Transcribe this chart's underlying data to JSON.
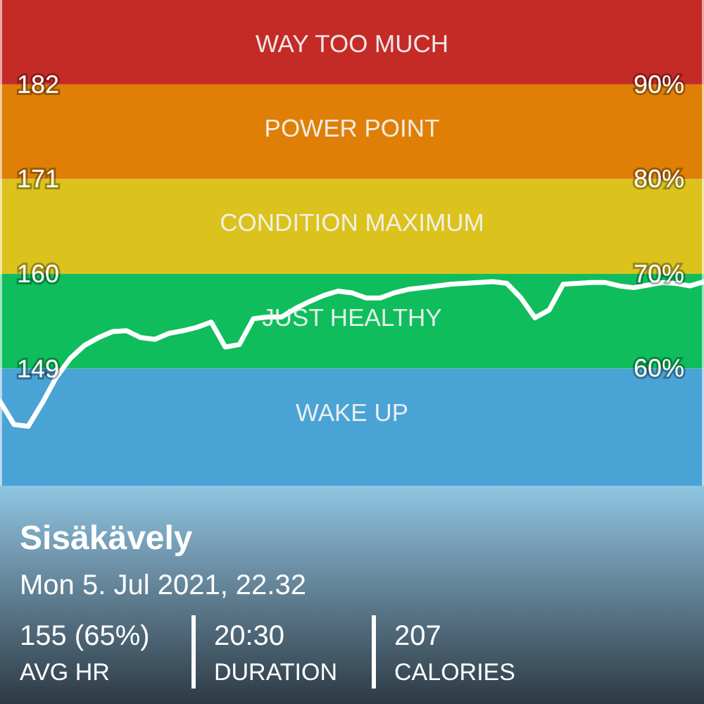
{
  "chart_data": {
    "type": "line",
    "title": "Sisäkävely",
    "subtitle": "Mon 5. Jul 2021, 22.32",
    "annotations": [
      "155 (65%)",
      "AVG HR",
      "20:30",
      "DURATION",
      "207",
      "CALORIES"
    ],
    "categories": [
      null,
      null,
      null,
      null,
      null,
      null,
      null,
      null,
      null,
      null,
      null,
      null,
      null,
      null,
      null,
      null,
      null,
      null,
      null,
      null,
      null,
      null,
      null,
      null,
      null,
      null,
      null,
      null,
      null,
      null,
      null,
      null,
      null,
      null,
      null,
      null,
      null,
      null,
      null,
      null,
      null,
      null,
      null,
      null,
      null,
      null,
      null,
      null,
      null,
      null,
      null
    ],
    "series": [
      {
        "color": "#ffffff",
        "values": [
          145.2,
          142.5,
          142.3,
          145.0,
          148.0,
          150.2,
          151.7,
          152.6,
          153.3,
          153.4,
          152.6,
          152.4,
          153.1,
          153.4,
          153.8,
          154.4,
          151.5,
          151.8,
          154.8,
          155.0,
          155.0,
          156.0,
          156.8,
          157.5,
          158.0,
          157.8,
          157.2,
          157.2,
          157.8,
          158.2,
          158.4,
          158.6,
          158.8,
          158.9,
          159.0,
          159.1,
          158.9,
          157.2,
          154.9,
          155.8,
          158.8,
          158.9,
          159.0,
          159.0,
          158.6,
          158.4,
          158.7,
          159.0,
          158.9,
          158.6,
          159.1
        ]
      }
    ],
    "ylim": [
      135.4,
      191.8
    ],
    "yticks": [
      149,
      160,
      171,
      182
    ],
    "tick_labels": "y",
    "y2lim": [
      47.6,
      98.9
    ],
    "y2ticks": [
      {
        "value": 60,
        "label": "60%"
      },
      {
        "value": 70,
        "label": "70%"
      },
      {
        "value": 80,
        "label": "80%"
      },
      {
        "value": 90,
        "label": "90%"
      }
    ],
    "bands": [
      {
        "axis": "y",
        "from": 182,
        "to": 191.8,
        "label": "WAY TOO MUCH",
        "color": "#c42b27"
      },
      {
        "axis": "y",
        "from": 171,
        "to": 182,
        "label": "POWER POINT",
        "color": "#df7f05"
      },
      {
        "axis": "y",
        "from": 160,
        "to": 171,
        "label": "CONDITION MAXIMUM",
        "color": "#dbc21d"
      },
      {
        "axis": "y",
        "from": 149,
        "to": 160,
        "label": "JUST HEALTHY",
        "color": "#0fbd5c"
      },
      {
        "axis": "y",
        "from": 135.4,
        "to": 149,
        "label": "WAKE UP",
        "color": "#4aa3d5"
      }
    ]
  }
}
